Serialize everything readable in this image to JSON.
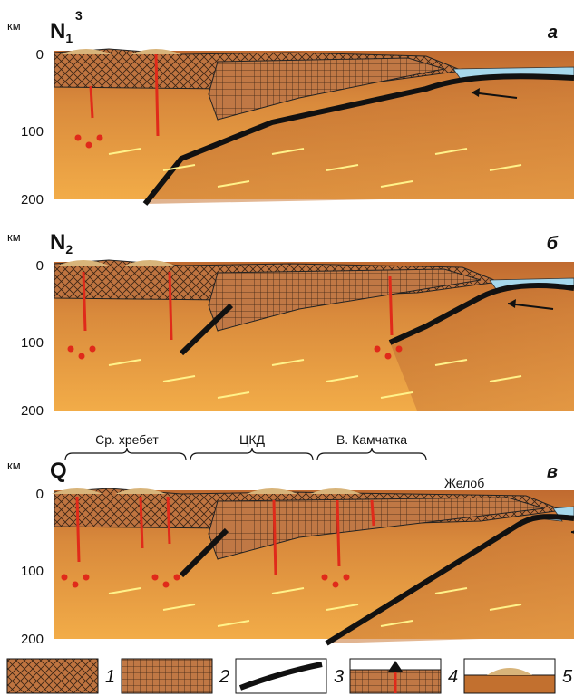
{
  "panels": [
    {
      "label": "а",
      "age": "N",
      "age_sub": "1",
      "age_sup": "3",
      "unit": "км",
      "depth_ticks": [
        0,
        100,
        200
      ]
    },
    {
      "label": "б",
      "age": "N",
      "age_sub": "2",
      "unit": "км",
      "depth_ticks": [
        0,
        100,
        200
      ]
    },
    {
      "label": "в",
      "age": "Q",
      "unit": "км",
      "depth_ticks": [
        0,
        100,
        200
      ]
    }
  ],
  "regions": [
    "Ср. хребет",
    "ЦКД",
    "В. Камчатка",
    "Желоб"
  ],
  "legend": [
    "1",
    "2",
    "3",
    "4",
    "5"
  ]
}
